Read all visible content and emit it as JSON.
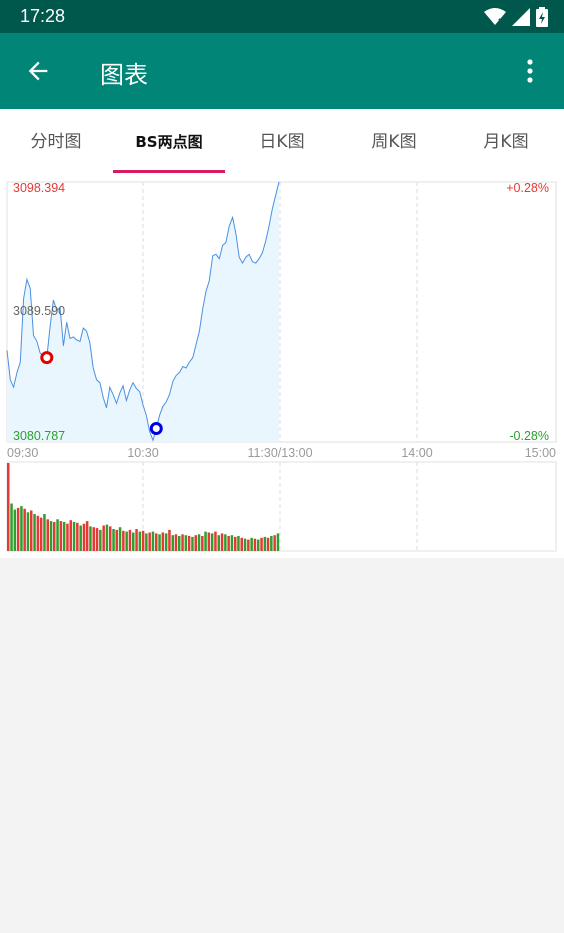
{
  "status": {
    "time": "17:28",
    "icons": [
      "wifi-icon",
      "signal-icon",
      "battery-icon"
    ]
  },
  "appbar": {
    "title": "图表",
    "back_icon": "arrow-left-icon",
    "menu_icon": "more-vert-icon"
  },
  "tabs": [
    {
      "label": "分时图",
      "active": false
    },
    {
      "label": "BS两点图",
      "active": true
    },
    {
      "label": "日K图",
      "active": false
    },
    {
      "label": "周K图",
      "active": false
    },
    {
      "label": "月K图",
      "active": false
    }
  ],
  "colors": {
    "statusbar": "#00574b",
    "appbar": "#008577",
    "indicator": "#d81b60",
    "up": "#e53935",
    "down": "#2e9e2e",
    "line": "#4a90e2",
    "fill": "#eaf6fd"
  },
  "chart_data": {
    "type": "line",
    "price_labels": {
      "high": "3098.394",
      "mid": "3089.590",
      "low": "3080.787"
    },
    "pct_labels": {
      "high": "+0.28%",
      "low": "-0.28%"
    },
    "time_labels": [
      "09:30",
      "10:30",
      "11:30/13:00",
      "14:00",
      "15:00"
    ],
    "ylim": [
      3080.787,
      3098.394
    ],
    "price_series": [
      3087.0,
      3085.0,
      3084.5,
      3085.5,
      3086.2,
      3090.5,
      3091.8,
      3091.2,
      3088.0,
      3087.6,
      3086.8,
      3086.6,
      3086.5,
      3088.6,
      3090.4,
      3089.7,
      3089.9,
      3087.3,
      3088.9,
      3087.8,
      3087.9,
      3087.7,
      3087.6,
      3088.5,
      3088.3,
      3087.5,
      3085.8,
      3085.0,
      3084.8,
      3083.8,
      3083.1,
      3084.5,
      3084.0,
      3083.4,
      3084.1,
      3084.6,
      3083.6,
      3084.3,
      3084.8,
      3084.4,
      3084.2,
      3083.3,
      3082.6,
      3081.5,
      3080.9,
      3081.7,
      3082.6,
      3083.2,
      3083.5,
      3084.0,
      3084.9,
      3085.3,
      3085.5,
      3085.9,
      3085.8,
      3086.2,
      3086.5,
      3087.4,
      3088.3,
      3089.8,
      3091.0,
      3091.7,
      3093.4,
      3093.5,
      3093.2,
      3094.1,
      3094.3,
      3095.4,
      3096.0,
      3094.9,
      3093.3,
      3092.9,
      3093.3,
      3093.5,
      3093.0,
      3092.9,
      3093.2,
      3093.6,
      3094.4,
      3095.4,
      3096.6,
      3097.5,
      3098.4
    ],
    "buy_point_index": 12,
    "sell_point_index": 45,
    "volume_series": [
      "u:1.0",
      "d:0.54",
      "d:0.47",
      "u:0.49",
      "d:0.51",
      "u:0.48",
      "d:0.44",
      "u:0.46",
      "d:0.42",
      "u:0.40",
      "u:0.38",
      "d:0.42",
      "u:0.36",
      "d:0.34",
      "u:0.33",
      "d:0.36",
      "u:0.34",
      "d:0.33",
      "u:0.31",
      "u:0.35",
      "d:0.33",
      "u:0.32",
      "d:0.29",
      "u:0.31",
      "u:0.34",
      "d:0.28",
      "u:0.27",
      "u:0.26",
      "d:0.24",
      "u:0.29",
      "d:0.30",
      "u:0.28",
      "d:0.25",
      "u:0.24",
      "d:0.27",
      "u:0.23",
      "d:0.22",
      "u:0.24",
      "d:0.21",
      "u:0.25",
      "d:0.22",
      "u:0.23",
      "d:0.20",
      "u:0.21",
      "d:0.22",
      "u:0.20",
      "d:0.19",
      "u:0.21",
      "d:0.20",
      "u:0.24",
      "d:0.18",
      "u:0.19",
      "d:0.17",
      "u:0.19",
      "d:0.18",
      "u:0.17",
      "d:0.16",
      "u:0.18",
      "d:0.19",
      "u:0.17",
      "d:0.22",
      "u:0.21",
      "d:0.20",
      "u:0.22",
      "d:0.18",
      "u:0.20",
      "d:0.19",
      "u:0.17",
      "d:0.18",
      "u:0.16",
      "d:0.17",
      "u:0.15",
      "d:0.14",
      "u:0.13",
      "d:0.15",
      "u:0.14",
      "d:0.13",
      "u:0.15",
      "d:0.16",
      "u:0.15",
      "d:0.17",
      "u:0.18",
      "d:0.20"
    ]
  }
}
